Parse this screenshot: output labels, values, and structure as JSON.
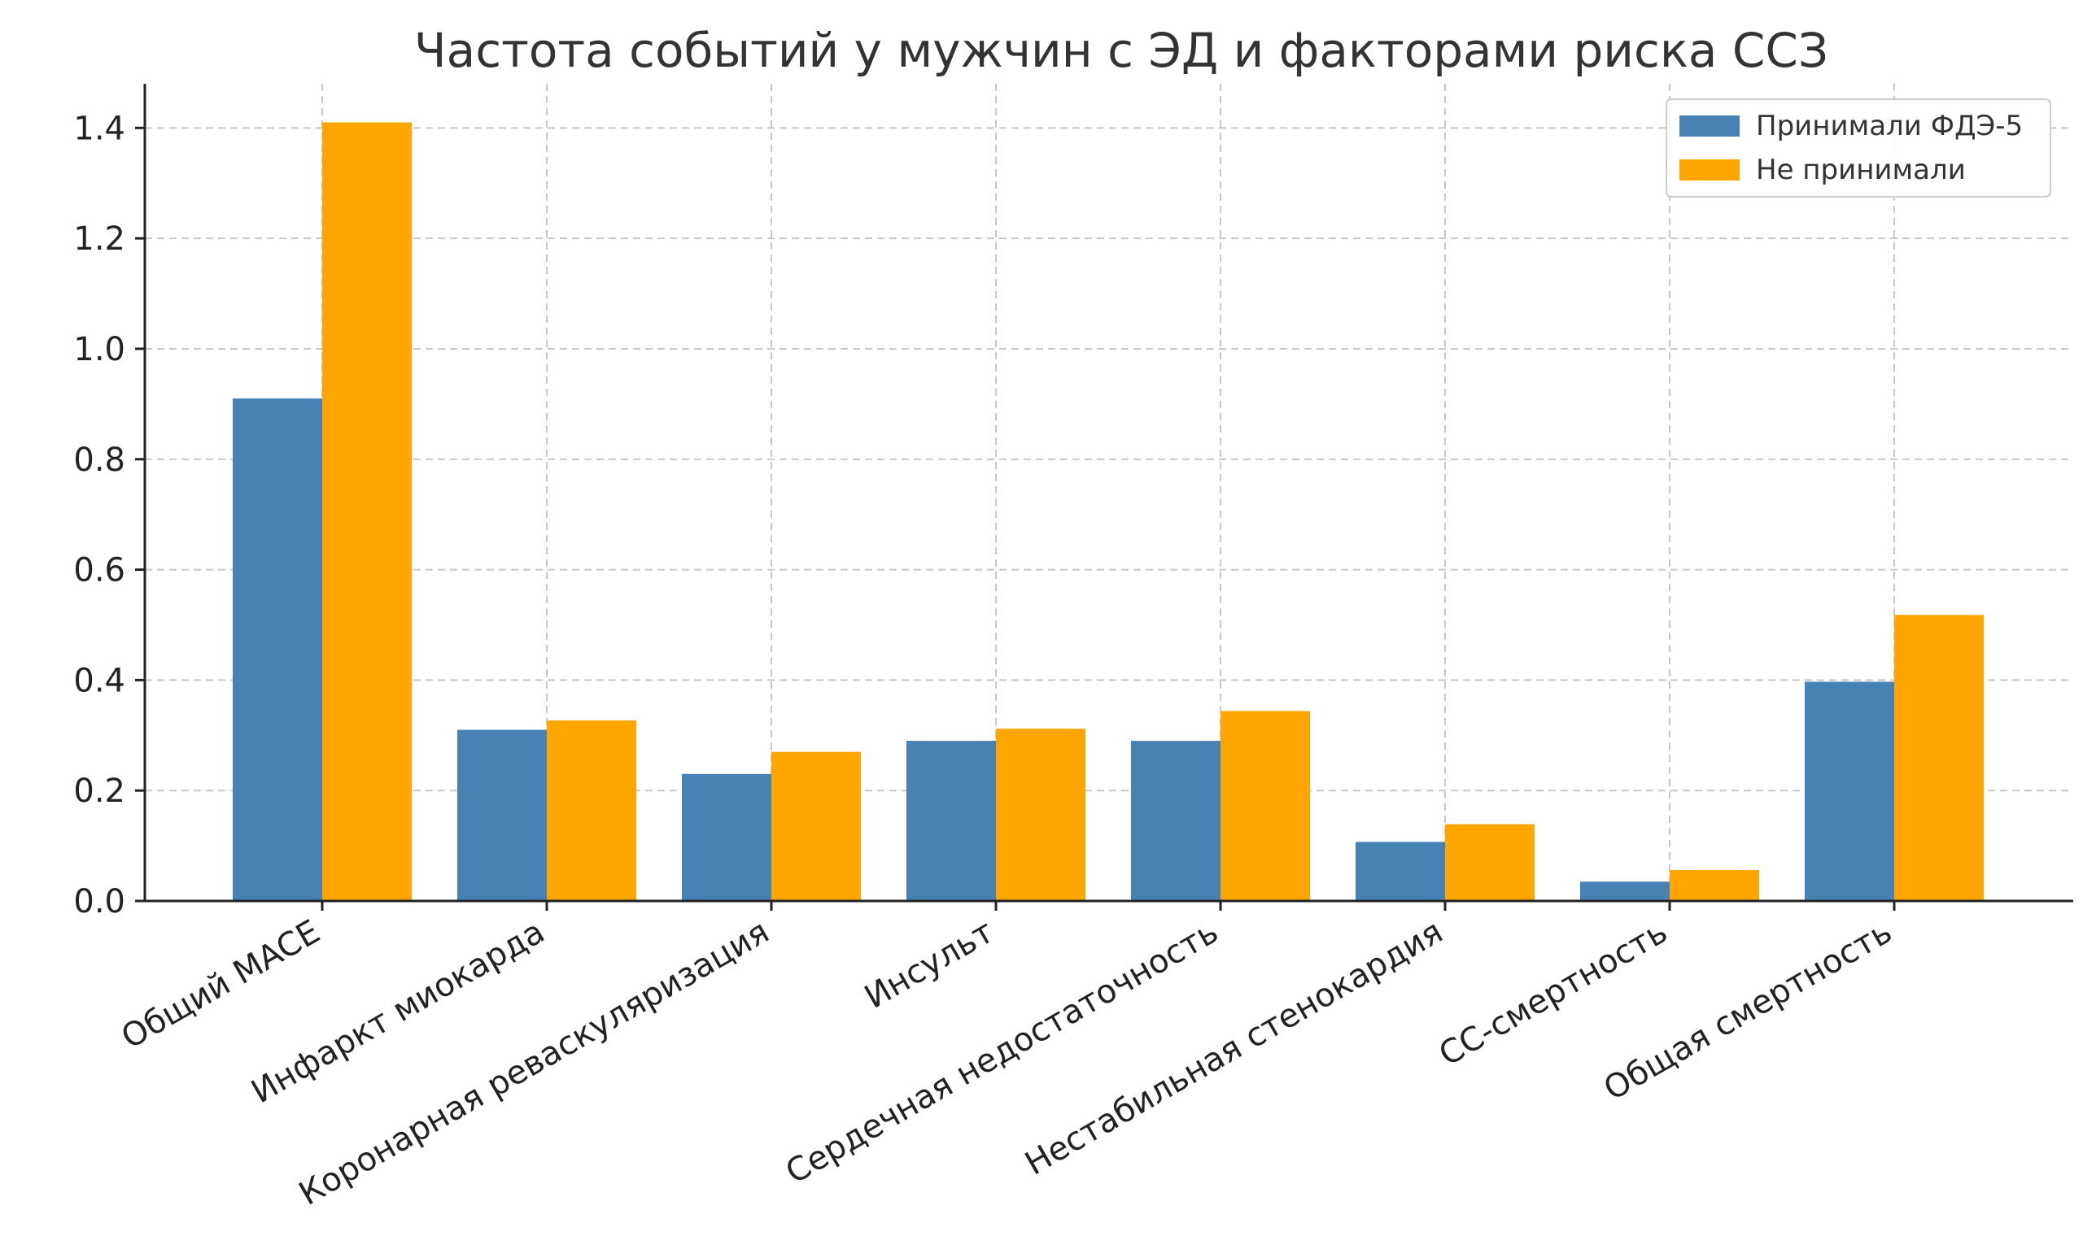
{
  "chart_data": {
    "type": "bar",
    "title": "Частота событий у мужчин с ЭД и факторами риска ССЗ",
    "xlabel": "",
    "ylabel": "",
    "categories": [
      "Общий MACE",
      "Инфаркт миокарда",
      "Коронарная реваскуляризация",
      "Инсульт",
      "Сердечная недостаточность",
      "Нестабильная стенокардия",
      "СС-смертность",
      "Общая смертность"
    ],
    "series": [
      {
        "name": "Принимали ФДЭ-5",
        "color": "#4682b4",
        "values": [
          0.91,
          0.31,
          0.23,
          0.29,
          0.29,
          0.107,
          0.035,
          0.397
        ]
      },
      {
        "name": "Не принимали",
        "color": "#ffa500",
        "values": [
          1.41,
          0.327,
          0.27,
          0.312,
          0.344,
          0.139,
          0.056,
          0.518
        ]
      }
    ],
    "ylim": [
      0,
      1.48
    ],
    "yticks": [
      "0.0",
      "0.2",
      "0.4",
      "0.6",
      "0.8",
      "1.0",
      "1.2",
      "1.4"
    ],
    "grid": true,
    "legend_position": "top-right"
  }
}
